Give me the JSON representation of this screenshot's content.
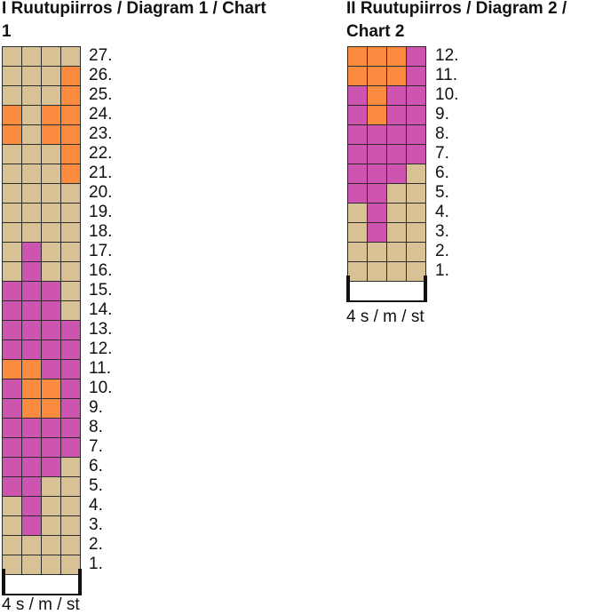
{
  "colors": {
    "B": "#d8c194",
    "O": "#fa8b3f",
    "P": "#cd55b0"
  },
  "diagram1": {
    "title": "I Ruutupiirros / Diagram 1 / Chart 1",
    "stitch_count": "4 s / m / st",
    "rows": [
      {
        "label": "27.",
        "cells": [
          "B",
          "B",
          "B",
          "B"
        ]
      },
      {
        "label": "26.",
        "cells": [
          "B",
          "B",
          "B",
          "O"
        ]
      },
      {
        "label": "25.",
        "cells": [
          "B",
          "B",
          "B",
          "O"
        ]
      },
      {
        "label": "24.",
        "cells": [
          "O",
          "B",
          "O",
          "O"
        ]
      },
      {
        "label": "23.",
        "cells": [
          "O",
          "B",
          "O",
          "O"
        ]
      },
      {
        "label": "22.",
        "cells": [
          "B",
          "B",
          "B",
          "O"
        ]
      },
      {
        "label": "21.",
        "cells": [
          "B",
          "B",
          "B",
          "O"
        ]
      },
      {
        "label": "20.",
        "cells": [
          "B",
          "B",
          "B",
          "B"
        ]
      },
      {
        "label": "19.",
        "cells": [
          "B",
          "B",
          "B",
          "B"
        ]
      },
      {
        "label": "18.",
        "cells": [
          "B",
          "B",
          "B",
          "B"
        ]
      },
      {
        "label": "17.",
        "cells": [
          "B",
          "P",
          "B",
          "B"
        ]
      },
      {
        "label": "16.",
        "cells": [
          "B",
          "P",
          "B",
          "B"
        ]
      },
      {
        "label": "15.",
        "cells": [
          "P",
          "P",
          "P",
          "B"
        ]
      },
      {
        "label": "14.",
        "cells": [
          "P",
          "P",
          "P",
          "B"
        ]
      },
      {
        "label": "13.",
        "cells": [
          "P",
          "P",
          "P",
          "P"
        ]
      },
      {
        "label": "12.",
        "cells": [
          "P",
          "P",
          "P",
          "P"
        ]
      },
      {
        "label": "11.",
        "cells": [
          "O",
          "O",
          "P",
          "P"
        ]
      },
      {
        "label": "10.",
        "cells": [
          "P",
          "O",
          "O",
          "P"
        ]
      },
      {
        "label": "9.",
        "cells": [
          "P",
          "O",
          "O",
          "P"
        ]
      },
      {
        "label": "8.",
        "cells": [
          "P",
          "P",
          "P",
          "P"
        ]
      },
      {
        "label": "7.",
        "cells": [
          "P",
          "P",
          "P",
          "P"
        ]
      },
      {
        "label": "6.",
        "cells": [
          "P",
          "P",
          "P",
          "B"
        ]
      },
      {
        "label": "5.",
        "cells": [
          "P",
          "P",
          "B",
          "B"
        ]
      },
      {
        "label": "4.",
        "cells": [
          "B",
          "P",
          "B",
          "B"
        ]
      },
      {
        "label": "3.",
        "cells": [
          "B",
          "P",
          "B",
          "B"
        ]
      },
      {
        "label": "2.",
        "cells": [
          "B",
          "B",
          "B",
          "B"
        ]
      },
      {
        "label": "1.",
        "cells": [
          "B",
          "B",
          "B",
          "B"
        ]
      }
    ]
  },
  "diagram2": {
    "title": "II Ruutupiirros / Diagram 2 / Chart 2",
    "stitch_count": "4 s / m / st",
    "rows": [
      {
        "label": "12.",
        "cells": [
          "O",
          "O",
          "O",
          "P"
        ]
      },
      {
        "label": "11.",
        "cells": [
          "O",
          "O",
          "O",
          "P"
        ]
      },
      {
        "label": "10.",
        "cells": [
          "P",
          "O",
          "P",
          "P"
        ]
      },
      {
        "label": "9.",
        "cells": [
          "P",
          "O",
          "P",
          "P"
        ]
      },
      {
        "label": "8.",
        "cells": [
          "P",
          "P",
          "P",
          "P"
        ]
      },
      {
        "label": "7.",
        "cells": [
          "P",
          "P",
          "P",
          "P"
        ]
      },
      {
        "label": "6.",
        "cells": [
          "P",
          "P",
          "P",
          "B"
        ]
      },
      {
        "label": "5.",
        "cells": [
          "P",
          "P",
          "B",
          "B"
        ]
      },
      {
        "label": "4.",
        "cells": [
          "B",
          "P",
          "B",
          "B"
        ]
      },
      {
        "label": "3.",
        "cells": [
          "B",
          "P",
          "B",
          "B"
        ]
      },
      {
        "label": "2.",
        "cells": [
          "B",
          "B",
          "B",
          "B"
        ]
      },
      {
        "label": "1.",
        "cells": [
          "B",
          "B",
          "B",
          "B"
        ]
      }
    ]
  }
}
